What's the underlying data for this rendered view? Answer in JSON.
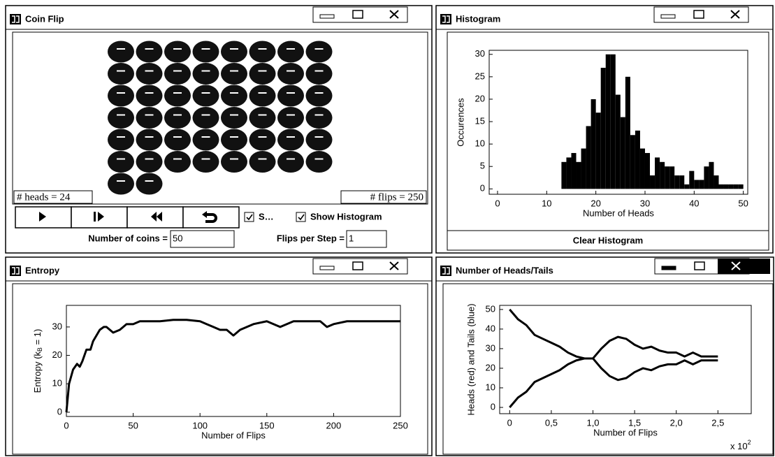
{
  "windows": [
    {
      "title": "Coin Flip"
    },
    {
      "title": "Histogram"
    },
    {
      "title": "Entropy"
    },
    {
      "title": "Number of Heads/Tails"
    }
  ],
  "coin_flip": {
    "heads_label": "# heads = 24",
    "flips_label": "# flips = 250",
    "check_short": "S…",
    "check_histogram": "Show Histogram",
    "coins_label": "Number of coins =",
    "coins_value": "50",
    "flips_step_label": "Flips per Step =",
    "flips_step_value": "1"
  },
  "histogram_panel": {
    "button": "Clear Histogram"
  },
  "chart_data": [
    {
      "type": "histogram",
      "x_label": "Number of Heads",
      "y_label": "Occurences",
      "color": "#000000",
      "bins": [
        13,
        14,
        15,
        16,
        17,
        18,
        19,
        20,
        21,
        22,
        23,
        24,
        25,
        26,
        27,
        28,
        29,
        30,
        31,
        32,
        33,
        34,
        35,
        36,
        37,
        38,
        39,
        40,
        41,
        42,
        43,
        44,
        45,
        46,
        47,
        48,
        49,
        50
      ],
      "values": [
        6,
        7,
        8,
        6,
        9,
        14,
        20,
        17,
        27,
        30,
        30,
        21,
        16,
        25,
        12,
        13,
        9,
        8,
        3,
        7,
        6,
        5,
        5,
        3,
        3,
        1,
        4,
        2,
        2,
        5,
        6,
        3,
        1,
        1,
        1,
        1,
        1
      ],
      "xlim": [
        -1.7,
        50.9
      ],
      "ylim": [
        -1.2,
        30.9
      ],
      "xticks": [
        0,
        10,
        20,
        30,
        40,
        50
      ],
      "yticks": [
        0,
        5,
        10,
        15,
        20,
        25,
        30
      ]
    },
    {
      "type": "line",
      "x_label": "Number of Flips",
      "y_label_prefix": "Entropy (k",
      "y_label_sub": "B",
      "y_label_suffix": " = 1)",
      "color": "#000000",
      "x": [
        0,
        2,
        5,
        8,
        10,
        12,
        15,
        18,
        20,
        25,
        28,
        30,
        35,
        40,
        45,
        50,
        55,
        60,
        70,
        80,
        90,
        100,
        105,
        110,
        115,
        120,
        125,
        130,
        140,
        150,
        160,
        170,
        180,
        190,
        195,
        200,
        210,
        220,
        230,
        240,
        250
      ],
      "values": [
        0,
        10,
        15,
        17,
        16,
        18,
        22,
        22,
        25,
        29,
        30,
        30,
        28,
        29,
        31,
        31,
        32,
        32,
        32,
        32.5,
        32.5,
        32,
        31,
        30,
        29,
        29,
        27,
        29,
        31,
        32,
        30,
        32,
        32,
        32,
        30,
        31,
        32,
        32,
        32,
        32,
        32
      ],
      "xlim": [
        0,
        250
      ],
      "ylim": [
        -1.5,
        37.6
      ],
      "xticks": [
        0,
        50,
        100,
        150,
        200,
        250
      ],
      "yticks": [
        0,
        10,
        20,
        30
      ]
    },
    {
      "type": "line",
      "x_label": "Number of Flips",
      "y_label": "Heads (red) and Tails (blue)",
      "x_scale_label": "x 10",
      "x_scale_exponent": "2",
      "x": [
        0,
        0.1,
        0.2,
        0.3,
        0.4,
        0.5,
        0.6,
        0.7,
        0.8,
        0.9,
        1.0,
        1.1,
        1.2,
        1.3,
        1.4,
        1.5,
        1.6,
        1.7,
        1.8,
        1.9,
        2.0,
        2.1,
        2.2,
        2.3,
        2.4,
        2.5
      ],
      "series": [
        {
          "color": "#000000",
          "values": [
            0,
            5,
            8,
            13,
            15,
            17,
            19,
            22,
            24,
            25,
            25,
            20,
            16,
            14,
            15,
            18,
            20,
            19,
            21,
            22,
            22,
            24,
            22,
            24,
            24,
            24
          ]
        },
        {
          "color": "#000000",
          "values": [
            50,
            45,
            42,
            37,
            35,
            33,
            31,
            28,
            26,
            25,
            25,
            30,
            34,
            36,
            35,
            32,
            30,
            31,
            29,
            28,
            28,
            26,
            28,
            26,
            26,
            26
          ]
        }
      ],
      "xlim": [
        -0.12,
        2.9
      ],
      "ylim": [
        -3.2,
        52.1
      ],
      "xticks": [
        0,
        {
          "value": 0.5,
          "label": "0,5"
        },
        {
          "value": 1,
          "label": "1,0"
        },
        {
          "value": 1.5,
          "label": "1,5"
        },
        {
          "value": 2,
          "label": "2,0"
        },
        {
          "value": 2.5,
          "label": "2,5"
        }
      ],
      "yticks": [
        0,
        10,
        20,
        30,
        40,
        50
      ]
    }
  ]
}
